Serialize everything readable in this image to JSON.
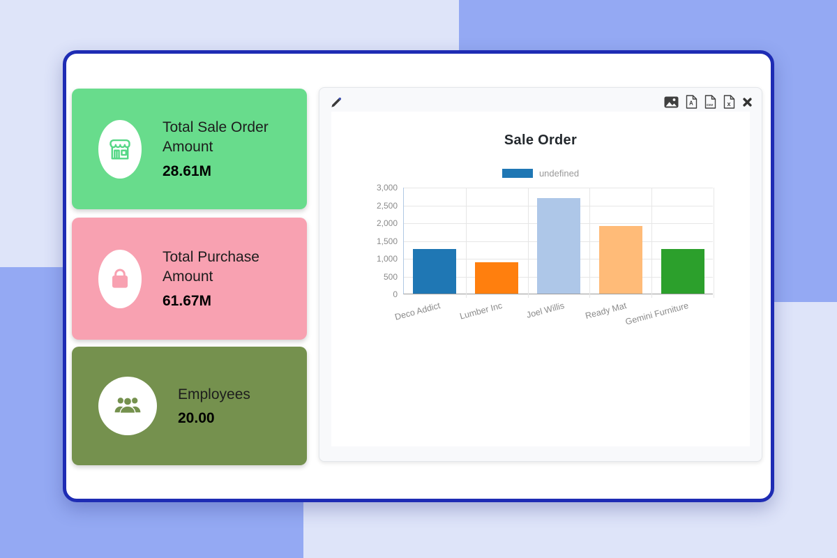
{
  "background": {
    "base_color": "#dee4f9",
    "shape_color": "#94a9f3"
  },
  "window": {
    "background": "#ffffff",
    "border_color": "#1e2cb4"
  },
  "kpi_cards": [
    {
      "title": "Total Sale Order Amount",
      "value": "28.61M",
      "bg_color": "#68dc8c",
      "icon": "store-icon",
      "icon_color": "#56d786"
    },
    {
      "title": "Total Purchase Amount",
      "value": "61.67M",
      "bg_color": "#f8a1b1",
      "icon": "shopping-bag-icon",
      "icon_color": "#f8a1b1"
    },
    {
      "title": "Employees",
      "value": "20.00",
      "bg_color": "#75914e",
      "icon": "people-group-icon",
      "icon_color": "#75914e"
    }
  ],
  "chart_panel": {
    "toolbar_icons": [
      "edit-pencil-icon",
      "export-image-icon",
      "export-pdf-icon",
      "export-csv-icon",
      "export-xls-icon",
      "close-icon"
    ],
    "csv_label": "csv",
    "xls_label": "x",
    "pdf_label": "A"
  },
  "chart_data": {
    "type": "bar",
    "title": "Sale Order",
    "legend": [
      {
        "label": "undefined",
        "color": "#1f77b4"
      }
    ],
    "legend_position": "top-center",
    "categories": [
      "Deco Addict",
      "Lumber Inc",
      "Joel Willis",
      "Ready Mat",
      "Gemini Furniture"
    ],
    "values": [
      1250,
      875,
      2680,
      1900,
      1250
    ],
    "bar_colors": [
      "#1f77b4",
      "#ff7f0e",
      "#aec7e8",
      "#ffbb78",
      "#2ca02c"
    ],
    "xlabel": "",
    "ylabel": "",
    "ylim": [
      0,
      3000
    ],
    "y_ticks": [
      "3,000",
      "2,500",
      "2,000",
      "1,500",
      "1,000",
      "500",
      "0"
    ],
    "grid": true,
    "x_label_rotation_deg": -15
  }
}
